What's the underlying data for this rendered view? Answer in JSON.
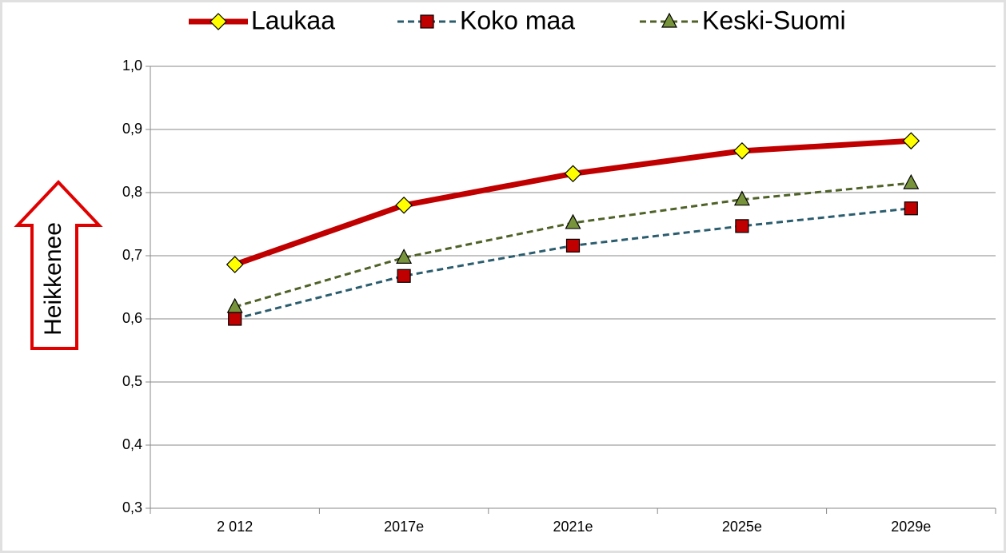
{
  "chart_data": {
    "type": "line",
    "categories": [
      "2 012",
      "2017e",
      "2021e",
      "2025e",
      "2029e"
    ],
    "series": [
      {
        "name": "Laukaa",
        "color": "#c00000",
        "marker": "diamond",
        "marker_color": "#ffff00",
        "dashed": false,
        "values": [
          0.686,
          0.78,
          0.83,
          0.866,
          0.882
        ]
      },
      {
        "name": "Koko maa",
        "color": "#2b5d6e",
        "marker": "square",
        "marker_color": "#c00000",
        "dashed": true,
        "values": [
          0.6,
          0.668,
          0.716,
          0.747,
          0.775
        ]
      },
      {
        "name": "Keski-Suomi",
        "color": "#4f6228",
        "marker": "triangle",
        "marker_color": "#77933c",
        "dashed": true,
        "values": [
          0.619,
          0.697,
          0.752,
          0.789,
          0.815
        ]
      }
    ],
    "ylim": [
      0.3,
      1.0
    ],
    "yticks": [
      {
        "value": 0.3,
        "label": "0,3"
      },
      {
        "value": 0.4,
        "label": "0,4"
      },
      {
        "value": 0.5,
        "label": "0,5"
      },
      {
        "value": 0.6,
        "label": "0,6"
      },
      {
        "value": 0.7,
        "label": "0,7"
      },
      {
        "value": 0.8,
        "label": "0,8"
      },
      {
        "value": 0.9,
        "label": "0,9"
      },
      {
        "value": 1.0,
        "label": "1,0"
      }
    ],
    "grid": true,
    "legend": "top",
    "annotation": "Heikkenee"
  }
}
